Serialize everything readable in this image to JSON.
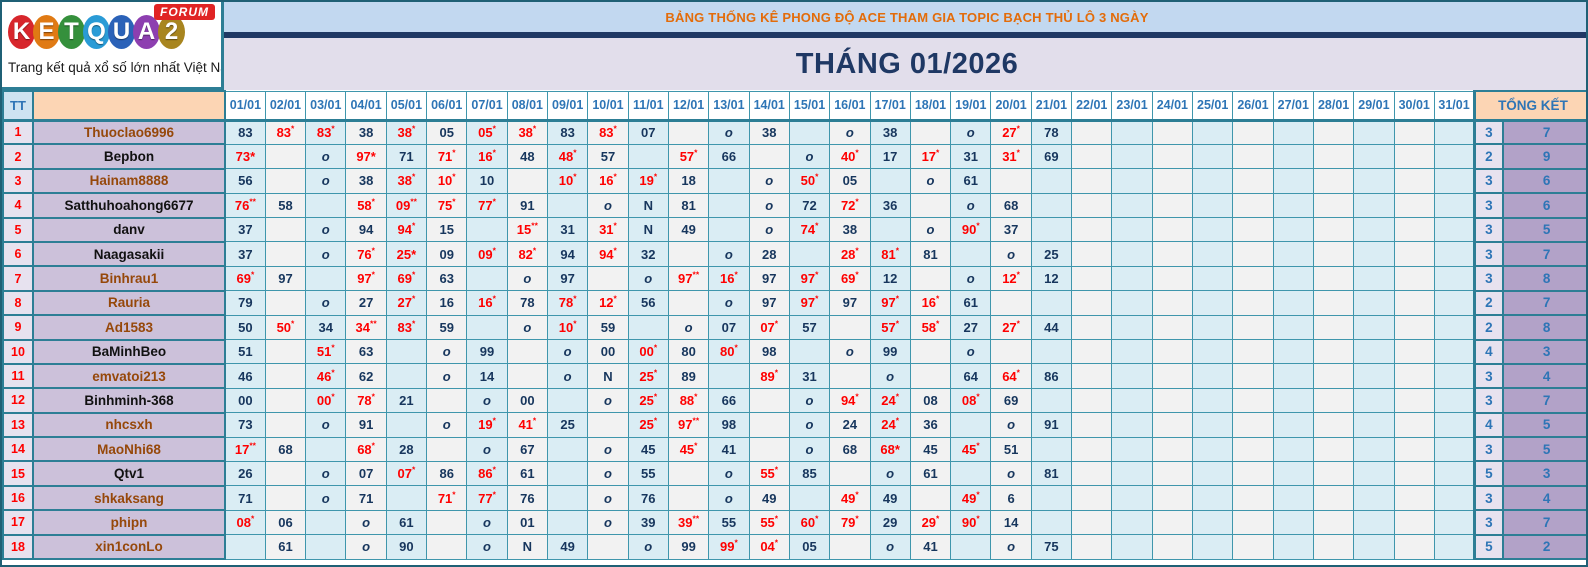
{
  "logo": {
    "brand_letters": [
      "K",
      "E",
      "T",
      "Q",
      "U",
      "A",
      "2"
    ],
    "brand_colors": [
      "#d7262c",
      "#e07a14",
      "#35903c",
      "#2a9bd6",
      "#2b62b8",
      "#8d3fb0",
      "#a8851f"
    ],
    "forum_badge": "FORUM",
    "tagline": "Trang kết quả xổ số lớn nhất Việt Nam"
  },
  "banner": {
    "title": "BẢNG THỐNG KÊ PHONG ĐỘ ACE THAM GIA TOPIC BẠCH THỦ LÔ 3 NGÀY"
  },
  "month_title": "THÁNG 01/2026",
  "colors": {
    "accent_orange": "#e36c0a",
    "navy": "#1f3864",
    "value_navy": "#17365d",
    "value_red": "#ff0000",
    "header_blue": "#2e75b6",
    "border_teal": "#2d7e95",
    "cell_cyan": "#daedf4",
    "cell_gray": "#f2f2f2",
    "name_lavender": "#ccc1da",
    "tk_purple": "#b2a2c8",
    "peach": "#fcd5b4"
  },
  "table": {
    "tt_header": "TT",
    "name_header": "",
    "summary_header": "TỔNG KẾT",
    "date_columns": [
      "01/01",
      "02/01",
      "03/01",
      "04/01",
      "05/01",
      "06/01",
      "07/01",
      "08/01",
      "09/01",
      "10/01",
      "11/01",
      "12/01",
      "13/01",
      "14/01",
      "15/01",
      "16/01",
      "17/01",
      "18/01",
      "19/01",
      "20/01",
      "21/01",
      "22/01",
      "23/01",
      "24/01",
      "25/01",
      "26/01",
      "27/01",
      "28/01",
      "29/01",
      "30/01",
      "31/01"
    ],
    "legend": {
      "^": "red value with small raised star",
      "*": "red value with inline asterisk",
      "o": "italic o marker",
      "N": "N marker"
    },
    "rows": [
      {
        "tt": "1",
        "name": "Thuoclao6996",
        "color": "brown",
        "days": [
          "83",
          "83^",
          "83^",
          "38",
          "38^",
          "05",
          "05^",
          "38^",
          "83",
          "83^",
          "07",
          "",
          "o",
          "38",
          "",
          "o",
          "38",
          "",
          "o",
          "27^",
          "78",
          "",
          "",
          "",
          "",
          "",
          "",
          "",
          "",
          "",
          ""
        ],
        "tk": [
          "3",
          "7"
        ]
      },
      {
        "tt": "2",
        "name": "Bepbon",
        "color": "black",
        "days": [
          "73*",
          "",
          "o",
          "97*",
          "71",
          "71^",
          "16^",
          "48",
          "48^",
          "57",
          "",
          "57^",
          "66",
          "",
          "o",
          "40^",
          "17",
          "17^",
          "31",
          "31^",
          "69",
          "",
          "",
          "",
          "",
          "",
          "",
          "",
          "",
          "",
          ""
        ],
        "tk": [
          "2",
          "9"
        ]
      },
      {
        "tt": "3",
        "name": "Hainam8888",
        "color": "brown",
        "days": [
          "56",
          "",
          "o",
          "38",
          "38^",
          "10^",
          "10",
          "",
          "10^",
          "16^",
          "19^",
          "18",
          "",
          "o",
          "50^",
          "05",
          "",
          "o",
          "61",
          "",
          "",
          "",
          "",
          "",
          "",
          "",
          "",
          "",
          "",
          "",
          ""
        ],
        "tk": [
          "3",
          "6"
        ]
      },
      {
        "tt": "4",
        "name": "Satthuhoahong6677",
        "color": "black",
        "days": [
          "76^^",
          "58",
          "",
          "58^",
          "09^^",
          "75^",
          "77^",
          "91",
          "",
          "o",
          "N",
          "81",
          "",
          "o",
          "72",
          "72^",
          "36",
          "",
          "o",
          "68",
          "",
          "",
          "",
          "",
          "",
          "",
          "",
          "",
          "",
          "",
          ""
        ],
        "tk": [
          "3",
          "6"
        ]
      },
      {
        "tt": "5",
        "name": "danv",
        "color": "black",
        "days": [
          "37",
          "",
          "o",
          "94",
          "94^",
          "15",
          "",
          "15^^",
          "31",
          "31^",
          "N",
          "49",
          "",
          "o",
          "74^",
          "38",
          "",
          "o",
          "90^",
          "37",
          "",
          "",
          "",
          "",
          "",
          "",
          "",
          "",
          "",
          "",
          ""
        ],
        "tk": [
          "3",
          "5"
        ]
      },
      {
        "tt": "6",
        "name": "Naagasakii",
        "color": "black",
        "days": [
          "37",
          "",
          "o",
          "76^",
          "25*",
          "09",
          "09^",
          "82^",
          "94",
          "94^",
          "32",
          "",
          "o",
          "28",
          "",
          "28^",
          "81^",
          "81",
          "",
          "o",
          "25",
          "",
          "",
          "",
          "",
          "",
          "",
          "",
          "",
          "",
          ""
        ],
        "tk": [
          "3",
          "7"
        ]
      },
      {
        "tt": "7",
        "name": "Binhrau1",
        "color": "brown",
        "days": [
          "69^",
          "97",
          "",
          "97^",
          "69^",
          "63",
          "",
          "o",
          "97",
          "",
          "o",
          "97^^",
          "16^",
          "97",
          "97^",
          "69^",
          "12",
          "",
          "o",
          "12^",
          "12",
          "",
          "",
          "",
          "",
          "",
          "",
          "",
          "",
          "",
          ""
        ],
        "tk": [
          "3",
          "8"
        ]
      },
      {
        "tt": "8",
        "name": "Rauria",
        "color": "brown",
        "days": [
          "79",
          "",
          "o",
          "27",
          "27^",
          "16",
          "16^",
          "78",
          "78^",
          "12^",
          "56",
          "",
          "o",
          "97",
          "97^",
          "97",
          "97^",
          "16^",
          "61",
          "",
          "",
          "",
          "",
          "",
          "",
          "",
          "",
          "",
          "",
          "",
          ""
        ],
        "tk": [
          "2",
          "7"
        ]
      },
      {
        "tt": "9",
        "name": "Ad1583",
        "color": "brown",
        "days": [
          "50",
          "50^",
          "34",
          "34^^",
          "83^",
          "59",
          "",
          "o",
          "10^",
          "59",
          "",
          "o",
          "07",
          "07^",
          "57",
          "",
          "57^",
          "58^",
          "27",
          "27^",
          "44",
          "",
          "",
          "",
          "",
          "",
          "",
          "",
          "",
          "",
          ""
        ],
        "tk": [
          "2",
          "8"
        ]
      },
      {
        "tt": "10",
        "name": "BaMinhBeo",
        "color": "black",
        "days": [
          "51",
          "",
          "51^",
          "63",
          "",
          "o",
          "99",
          "",
          "o",
          "00",
          "00^",
          "80",
          "80^",
          "98",
          "",
          "o",
          "99",
          "",
          "o",
          "",
          "",
          "",
          "",
          "",
          "",
          "",
          "",
          "",
          "",
          "",
          ""
        ],
        "tk": [
          "4",
          "3"
        ]
      },
      {
        "tt": "11",
        "name": "emvatoi213",
        "color": "brown",
        "days": [
          "46",
          "",
          "46^",
          "62",
          "",
          "o",
          "14",
          "",
          "o",
          "N",
          "25^",
          "89",
          "",
          "89^",
          "31",
          "",
          "o",
          "",
          "64",
          "64^",
          "86",
          "",
          "",
          "",
          "",
          "",
          "",
          "",
          "",
          "",
          ""
        ],
        "tk": [
          "3",
          "4"
        ]
      },
      {
        "tt": "12",
        "name": "Binhminh-368",
        "color": "black",
        "days": [
          "00",
          "",
          "00^",
          "78^",
          "21",
          "",
          "o",
          "00",
          "",
          "o",
          "25^",
          "88^",
          "66",
          "",
          "o",
          "94^",
          "24^",
          "08",
          "08^",
          "69",
          "",
          "",
          "",
          "",
          "",
          "",
          "",
          "",
          "",
          "",
          ""
        ],
        "tk": [
          "3",
          "7"
        ]
      },
      {
        "tt": "13",
        "name": "nhcsxh",
        "color": "brown",
        "days": [
          "73",
          "",
          "o",
          "91",
          "",
          "o",
          "19^",
          "41^",
          "25",
          "",
          "25^",
          "97^^",
          "98",
          "",
          "o",
          "24",
          "24^",
          "36",
          "",
          "o",
          "91",
          "",
          "",
          "",
          "",
          "",
          "",
          "",
          "",
          "",
          ""
        ],
        "tk": [
          "4",
          "5"
        ]
      },
      {
        "tt": "14",
        "name": "MaoNhi68",
        "color": "brown",
        "days": [
          "17^^",
          "68",
          "",
          "68^",
          "28",
          "",
          "o",
          "67",
          "",
          "o",
          "45",
          "45^",
          "41",
          "",
          "o",
          "68",
          "68*",
          "45",
          "45^",
          "51",
          "",
          "",
          "",
          "",
          "",
          "",
          "",
          "",
          "",
          "",
          ""
        ],
        "tk": [
          "3",
          "5"
        ]
      },
      {
        "tt": "15",
        "name": "Qtv1",
        "color": "black",
        "days": [
          "26",
          "",
          "o",
          "07",
          "07^",
          "86",
          "86^",
          "61",
          "",
          "o",
          "55",
          "",
          "o",
          "55^",
          "85",
          "",
          "o",
          "61",
          "",
          "o",
          "81",
          "",
          "",
          "",
          "",
          "",
          "",
          "",
          "",
          "",
          ""
        ],
        "tk": [
          "5",
          "3"
        ]
      },
      {
        "tt": "16",
        "name": "shkaksang",
        "color": "brown",
        "days": [
          "71",
          "",
          "o",
          "71",
          "",
          "71^",
          "77^",
          "76",
          "",
          "o",
          "76",
          "",
          "o",
          "49",
          "",
          "49^",
          "49",
          "",
          "49^",
          "6",
          "",
          "",
          "",
          "",
          "",
          "",
          "",
          "",
          "",
          "",
          ""
        ],
        "tk": [
          "3",
          "4"
        ]
      },
      {
        "tt": "17",
        "name": "phipn",
        "color": "brown",
        "days": [
          "08^",
          "06",
          "",
          "o",
          "61",
          "",
          "o",
          "01",
          "",
          "o",
          "39",
          "39^^",
          "55",
          "55^",
          "60^",
          "79^",
          "29",
          "29^",
          "90^",
          "14",
          "",
          "",
          "",
          "",
          "",
          "",
          "",
          "",
          "",
          "",
          ""
        ],
        "tk": [
          "3",
          "7"
        ]
      },
      {
        "tt": "18",
        "name": "xin1conLo",
        "color": "brown",
        "days": [
          "",
          "61",
          "",
          "o",
          "90",
          "",
          "o",
          "N",
          "49",
          "",
          "o",
          "99",
          "99^",
          "04^",
          "05",
          "",
          "o",
          "41",
          "",
          "o",
          "75",
          "",
          "",
          "",
          "",
          "",
          "",
          "",
          "",
          "",
          ""
        ],
        "tk": [
          "5",
          "2"
        ]
      }
    ]
  }
}
